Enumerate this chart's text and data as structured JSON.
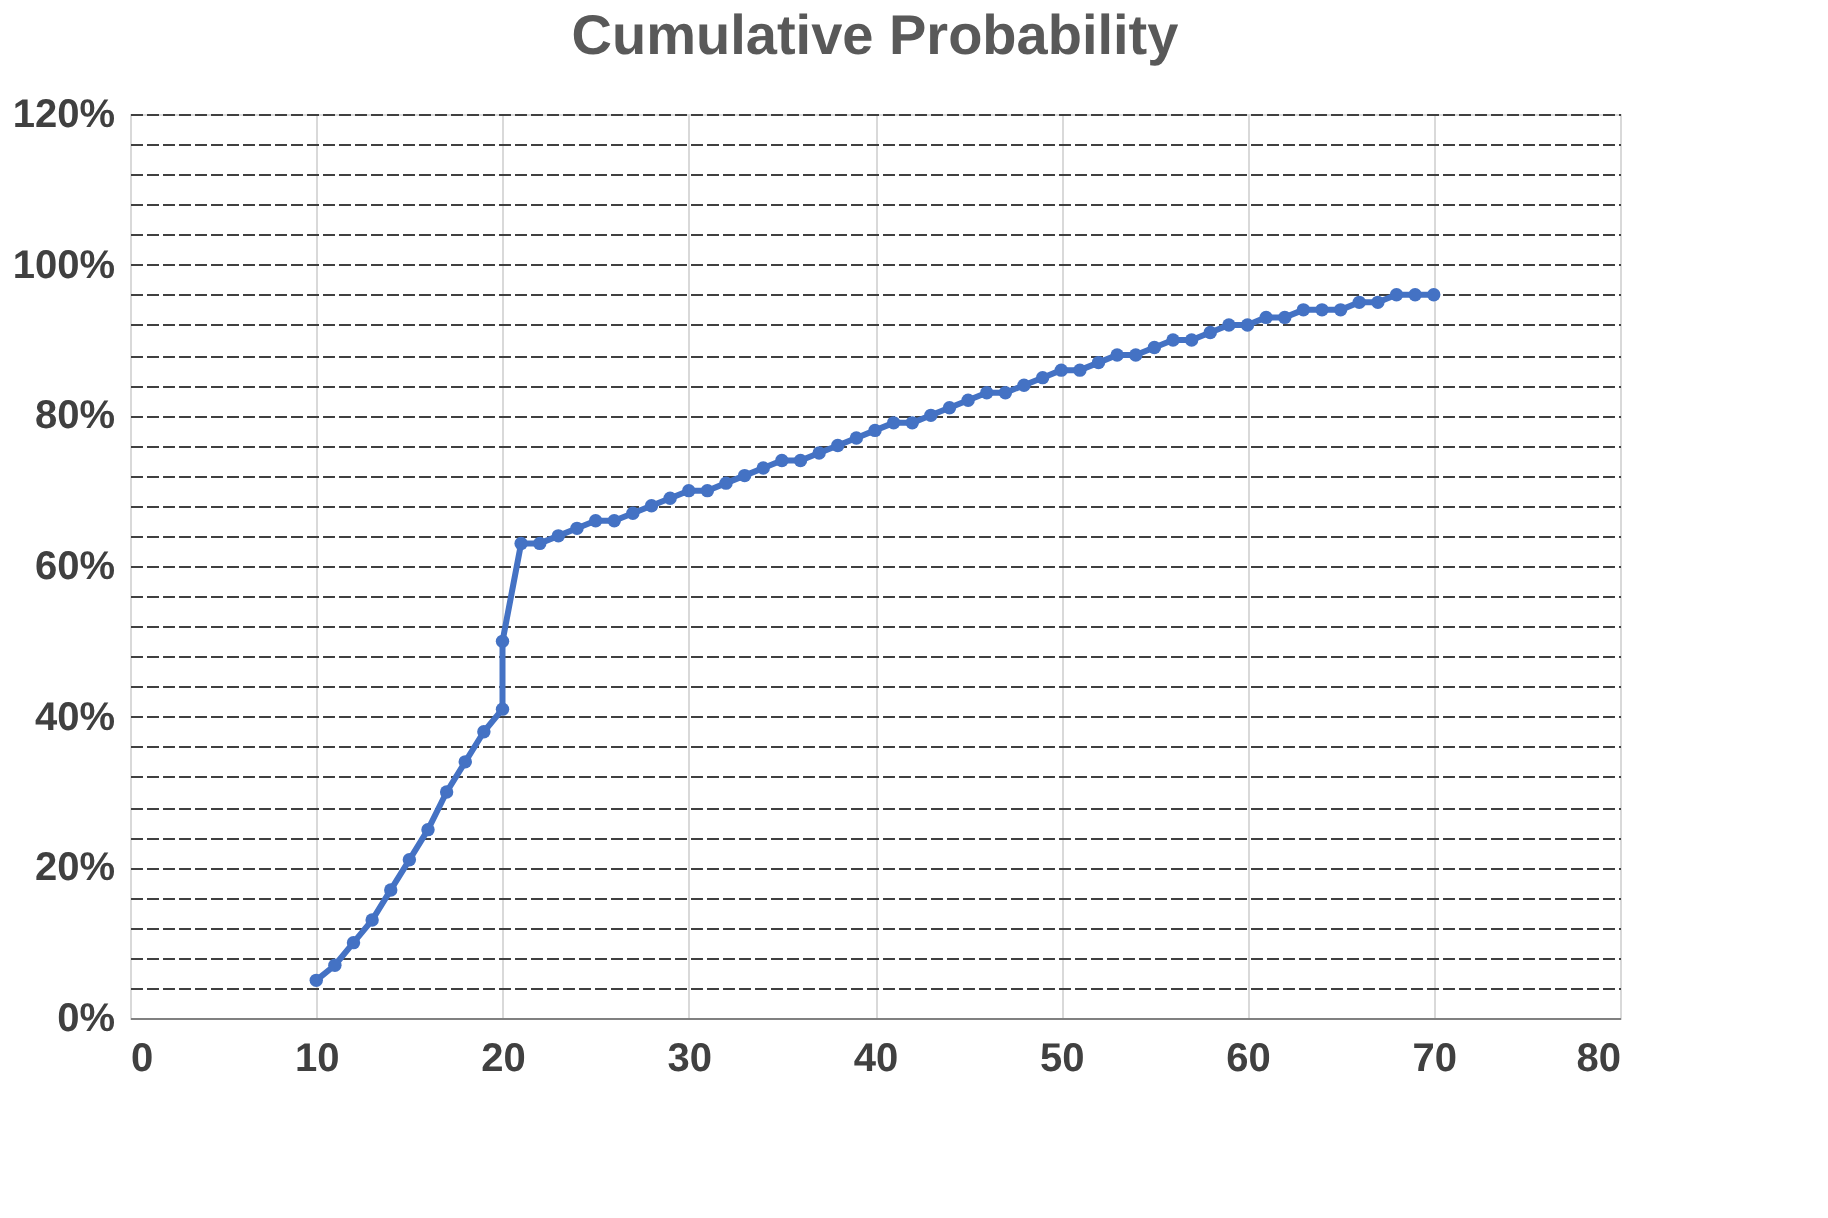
{
  "chart_data": {
    "type": "line",
    "title": "Cumulative Probability",
    "x": [
      10,
      11,
      12,
      13,
      14,
      15,
      16,
      17,
      18,
      19,
      20,
      20,
      21,
      22,
      23,
      24,
      25,
      26,
      27,
      28,
      29,
      30,
      31,
      32,
      33,
      34,
      35,
      36,
      37,
      38,
      39,
      40,
      41,
      42,
      43,
      44,
      45,
      46,
      47,
      48,
      49,
      50,
      51,
      52,
      53,
      54,
      55,
      56,
      57,
      58,
      59,
      60,
      61,
      62,
      63,
      64,
      65,
      66,
      67,
      68,
      69,
      70
    ],
    "series": [
      {
        "color": "#4472c4",
        "values": [
          5,
          7,
          10,
          13,
          17,
          21,
          25,
          30,
          34,
          38,
          41,
          50,
          63,
          63,
          64,
          65,
          66,
          66,
          67,
          68,
          69,
          70,
          70,
          71,
          72,
          73,
          74,
          74,
          75,
          76,
          77,
          78,
          79,
          79,
          80,
          81,
          82,
          83,
          83,
          84,
          85,
          86,
          86,
          87,
          88,
          88,
          89,
          90,
          90,
          91,
          92,
          92,
          93,
          93,
          94,
          94,
          94,
          95,
          95,
          96,
          96,
          96
        ]
      }
    ],
    "xlim": [
      0,
      80
    ],
    "xticks": [
      0,
      10,
      20,
      30,
      40,
      50,
      60,
      70,
      80
    ],
    "ylim": [
      0,
      120
    ],
    "yticks": [
      {
        "value": 0,
        "label": "0%"
      },
      {
        "value": 4,
        "label": null
      },
      {
        "value": 8,
        "label": null
      },
      {
        "value": 12,
        "label": null
      },
      {
        "value": 16,
        "label": null
      },
      {
        "value": 20,
        "label": "20%"
      },
      {
        "value": 24,
        "label": null
      },
      {
        "value": 28,
        "label": null
      },
      {
        "value": 32,
        "label": null
      },
      {
        "value": 36,
        "label": null
      },
      {
        "value": 40,
        "label": "40%"
      },
      {
        "value": 44,
        "label": null
      },
      {
        "value": 48,
        "label": null
      },
      {
        "value": 52,
        "label": null
      },
      {
        "value": 56,
        "label": null
      },
      {
        "value": 60,
        "label": "60%"
      },
      {
        "value": 64,
        "label": null
      },
      {
        "value": 68,
        "label": null
      },
      {
        "value": 72,
        "label": null
      },
      {
        "value": 76,
        "label": null
      },
      {
        "value": 80,
        "label": "80%"
      },
      {
        "value": 84,
        "label": null
      },
      {
        "value": 88,
        "label": null
      },
      {
        "value": 92,
        "label": null
      },
      {
        "value": 96,
        "label": null
      },
      {
        "value": 100,
        "label": "100%"
      },
      {
        "value": 104,
        "label": null
      },
      {
        "value": 108,
        "label": null
      },
      {
        "value": 112,
        "label": null
      },
      {
        "value": 116,
        "label": null
      },
      {
        "value": 120,
        "label": "120%"
      }
    ],
    "grid": true,
    "marker": "circle",
    "line_style": "solid"
  }
}
